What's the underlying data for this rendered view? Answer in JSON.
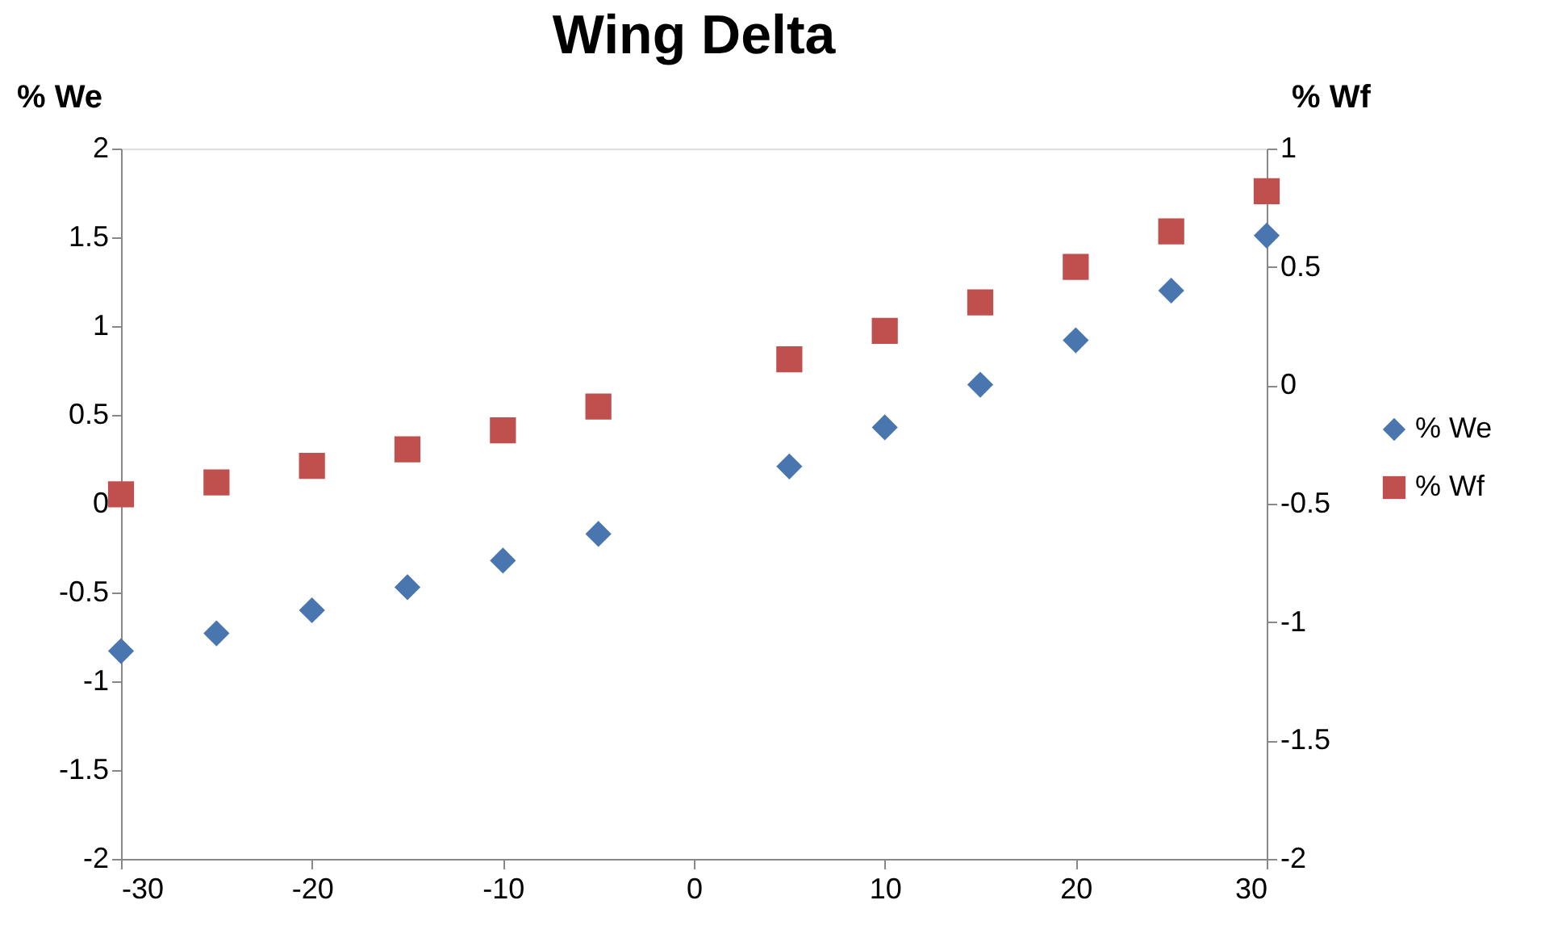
{
  "chart_data": {
    "type": "scatter",
    "title": "Wing Delta",
    "ylabel": "% We",
    "y2label": "% Wf",
    "x": [
      -30,
      -25,
      -20,
      -15,
      -10,
      -5,
      5,
      10,
      15,
      20,
      25,
      30
    ],
    "series": [
      {
        "name": "% We",
        "color": "#4a76b0",
        "marker": "diamond",
        "values": [
          -0.83,
          -0.73,
          -0.6,
          -0.47,
          -0.32,
          -0.17,
          0.21,
          0.43,
          0.67,
          0.92,
          1.2,
          1.51
        ]
      },
      {
        "name": "% Wf",
        "color": "#c0504d",
        "marker": "square",
        "axis": "y2",
        "values": [
          -0.46,
          -0.41,
          -0.34,
          -0.27,
          -0.19,
          -0.09,
          0.11,
          0.23,
          0.35,
          0.5,
          0.65,
          0.82
        ]
      }
    ],
    "xlim": [
      -30,
      30
    ],
    "xticks": [
      -30,
      -20,
      -10,
      0,
      10,
      20,
      30
    ],
    "ylim": [
      -2,
      2
    ],
    "yticks": [
      -2,
      -1.5,
      -1,
      -0.5,
      0,
      0.5,
      1,
      1.5,
      2
    ],
    "y2lim": [
      -2,
      1
    ],
    "y2ticks": [
      -2,
      -1.5,
      -1,
      -0.5,
      0,
      0.5,
      1
    ],
    "grid": false,
    "legend": "right"
  }
}
